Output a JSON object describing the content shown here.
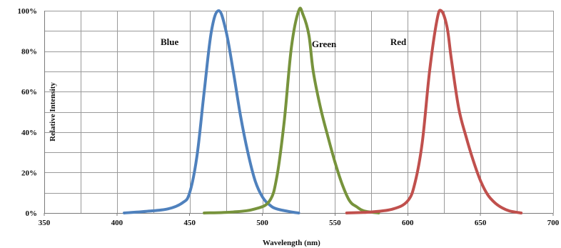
{
  "chart_data": {
    "type": "line",
    "title": "",
    "xlabel": "Wavelength (nm)",
    "ylabel": "Relative Intensity",
    "xlim": [
      350,
      700
    ],
    "ylim": [
      0,
      100
    ],
    "x_ticks": [
      350,
      400,
      450,
      500,
      550,
      600,
      650,
      700
    ],
    "x_tick_labels": [
      "350",
      "400",
      "450",
      "500",
      "550",
      "600",
      "650",
      "700"
    ],
    "y_ticks": [
      0,
      20,
      40,
      60,
      80,
      100
    ],
    "y_tick_labels": [
      "0%",
      "20%",
      "40%",
      "60%",
      "80%",
      "100%"
    ],
    "grid": true,
    "series": [
      {
        "name": "Blue",
        "color": "#4f81bd",
        "x": [
          405,
          420,
          435,
          445,
          450,
          455,
          460,
          465,
          470,
          475,
          480,
          485,
          490,
          495,
          500,
          505,
          510,
          520,
          525
        ],
        "values": [
          0,
          0.8,
          2,
          5,
          10,
          28,
          60,
          90,
          100,
          90,
          70,
          48,
          30,
          16,
          8,
          4,
          2,
          0.5,
          0
        ]
      },
      {
        "name": "Green",
        "color": "#77933c",
        "x": [
          460,
          480,
          495,
          505,
          510,
          515,
          520,
          525,
          528,
          532,
          535,
          540,
          545,
          550,
          555,
          560,
          565,
          570,
          580
        ],
        "values": [
          0,
          0.5,
          2,
          6,
          18,
          45,
          82,
          100,
          98,
          88,
          70,
          52,
          38,
          25,
          14,
          6,
          3,
          1,
          0
        ]
      },
      {
        "name": "Red",
        "color": "#c0504d",
        "x": [
          558,
          575,
          590,
          600,
          605,
          610,
          615,
          620,
          623,
          627,
          630,
          635,
          640,
          645,
          650,
          655,
          660,
          665,
          670,
          678
        ],
        "values": [
          0,
          0.5,
          2,
          6,
          15,
          35,
          70,
          95,
          100,
          92,
          76,
          52,
          38,
          26,
          16,
          9,
          5,
          2.5,
          1,
          0
        ]
      }
    ]
  }
}
